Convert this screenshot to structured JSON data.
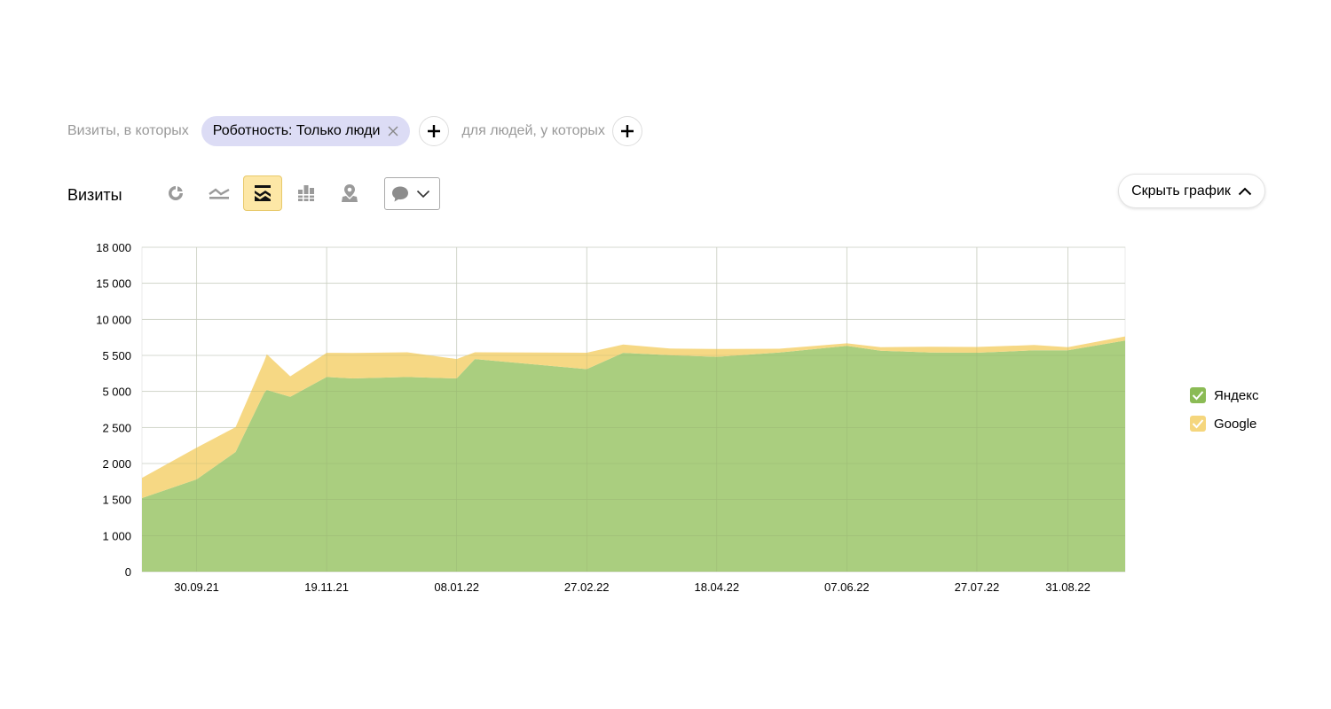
{
  "filters": {
    "visits_prefix": "Визиты, в которых",
    "chip_label": "Роботность: Только люди",
    "people_prefix": "для людей, у которых"
  },
  "toolbar": {
    "metric_label": "Визиты",
    "chart_type_icons": [
      "pie-chart-icon",
      "line-chart-icon",
      "stacked-area-icon",
      "stacked-bar-icon",
      "map-icon"
    ],
    "active_chart_type": "stacked-area-icon",
    "annotations_icon": "speech-bubble-icon",
    "hide_chart_label": "Скрыть график"
  },
  "colors": {
    "yandex": "#a5cb78",
    "google": "#f5d67d",
    "active_type": "#fde7a6",
    "chip": "#dcdcf5"
  },
  "chart_data": {
    "type": "area",
    "stacked": true,
    "x": [
      "09.09.21",
      "30.09.21",
      "15.10.21",
      "26.10.21",
      "27.10.21",
      "05.11.21",
      "19.11.21",
      "29.11.21",
      "20.12.21",
      "08.01.22",
      "15.01.22",
      "27.02.22",
      "13.03.22",
      "31.03.22",
      "18.04.22",
      "12.05.22",
      "07.06.22",
      "20.06.22",
      "09.07.22",
      "27.07.22",
      "18.08.22",
      "31.08.22",
      "22.09.22"
    ],
    "series": [
      {
        "name": "Яндекс",
        "values": [
          1520,
          1780,
          2160,
          4900,
          5020,
          4620,
          5200,
          5180,
          5200,
          5180,
          5450,
          5310,
          5820,
          5520,
          5480,
          5850,
          6700,
          6090,
          5870,
          5830,
          6130,
          6130,
          7350
        ]
      },
      {
        "name": "Google",
        "values": [
          280,
          440,
          360,
          520,
          610,
          590,
          620,
          630,
          690,
          270,
          440,
          520,
          1030,
          830,
          830,
          480,
          310,
          440,
          710,
          720,
          660,
          390,
          520
        ]
      }
    ],
    "ytick_labels": [
      "0",
      "1 000",
      "1 500",
      "2 000",
      "2 500",
      "5 000",
      "5 500",
      "10 000",
      "15 000",
      "18 000"
    ],
    "xtick_labels": [
      "30.09.21",
      "19.11.21",
      "08.01.22",
      "27.02.22",
      "18.04.22",
      "07.06.22",
      "27.07.22",
      "31.08.22"
    ],
    "ylabel": "",
    "xlabel": "",
    "grid": true,
    "legend": {
      "position": "right",
      "items": [
        {
          "name": "Яндекс",
          "checked": true
        },
        {
          "name": "Google",
          "checked": true
        }
      ]
    }
  }
}
